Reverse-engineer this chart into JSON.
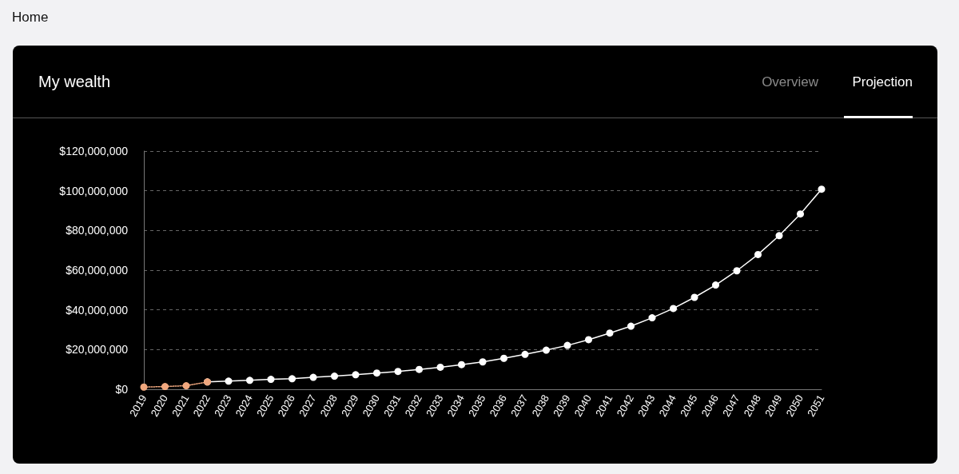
{
  "chart_data": {
    "type": "line",
    "title": "My wealth",
    "annotations": [
      "Home",
      "Overview",
      "Projection"
    ],
    "categories": [
      "2019",
      "2020",
      "2021",
      "2022",
      "2023",
      "2024",
      "2025",
      "2026",
      "2027",
      "2028",
      "2029",
      "2030",
      "2031",
      "2032",
      "2033",
      "2034",
      "2035",
      "2036",
      "2037",
      "2038",
      "2039",
      "2040",
      "2041",
      "2042",
      "2043",
      "2044",
      "2045",
      "2046",
      "2047",
      "2048",
      "2049",
      "2050",
      "2051"
    ],
    "series": [
      {
        "color": "#f0a77e",
        "line_style": "dotted",
        "values": [
          1100000,
          1400000,
          1800000,
          3700000,
          null,
          null,
          null,
          null,
          null,
          null,
          null,
          null,
          null,
          null,
          null,
          null,
          null,
          null,
          null,
          null,
          null,
          null,
          null,
          null,
          null,
          null,
          null,
          null,
          null,
          null,
          null,
          null,
          null
        ]
      },
      {
        "color": "#ffffff",
        "line_style": "solid",
        "values": [
          null,
          null,
          null,
          3700000,
          4100000,
          4500000,
          5000000,
          5300000,
          6000000,
          6600000,
          7300000,
          8200000,
          9000000,
          10000000,
          11100000,
          12400000,
          13800000,
          15600000,
          17600000,
          19700000,
          22100000,
          25000000,
          28300000,
          31800000,
          36000000,
          40700000,
          46300000,
          52500000,
          59700000,
          67900000,
          77400000,
          88300000,
          100800000
        ]
      }
    ],
    "ylim": [
      0,
      120000000
    ],
    "yticks": [
      {
        "value": 0,
        "label": "$0"
      },
      {
        "value": 20000000,
        "label": "$20,000,000"
      },
      {
        "value": 40000000,
        "label": "$40,000,000"
      },
      {
        "value": 60000000,
        "label": "$60,000,000"
      },
      {
        "value": 80000000,
        "label": "$80,000,000"
      },
      {
        "value": 100000000,
        "label": "$100,000,000"
      },
      {
        "value": 120000000,
        "label": "$120,000,000"
      }
    ],
    "grid": "y",
    "marker": "circle"
  }
}
